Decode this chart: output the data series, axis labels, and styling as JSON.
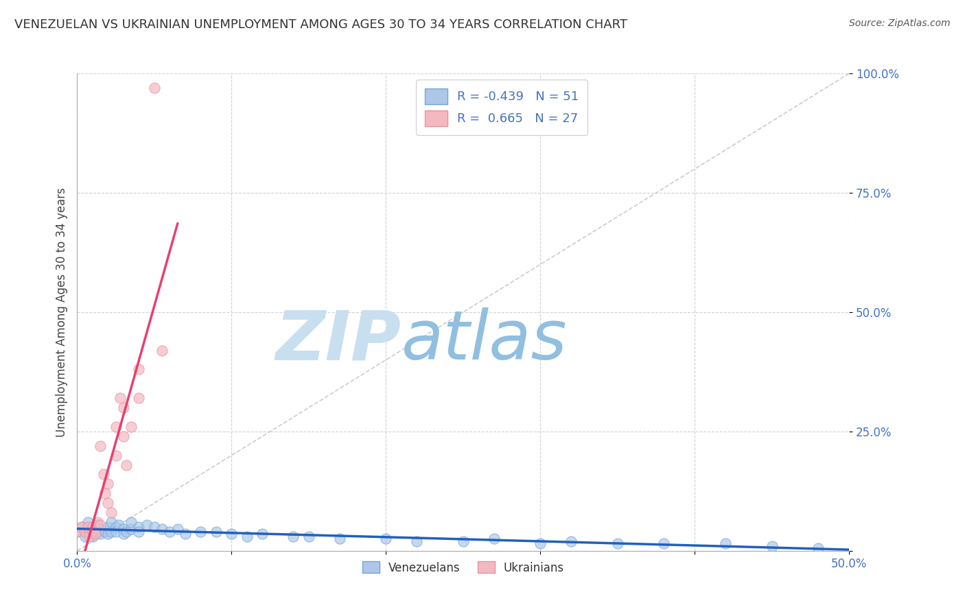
{
  "title": "VENEZUELAN VS UKRAINIAN UNEMPLOYMENT AMONG AGES 30 TO 34 YEARS CORRELATION CHART",
  "source": "Source: ZipAtlas.com",
  "ylabel": "Unemployment Among Ages 30 to 34 years",
  "xlim": [
    0.0,
    0.5
  ],
  "ylim": [
    0.0,
    1.0
  ],
  "xticks": [
    0.0,
    0.1,
    0.2,
    0.3,
    0.4,
    0.5
  ],
  "yticks": [
    0.0,
    0.25,
    0.5,
    0.75,
    1.0
  ],
  "xticklabels": [
    "0.0%",
    "",
    "",
    "",
    "",
    "50.0%"
  ],
  "yticklabels": [
    "",
    "25.0%",
    "50.0%",
    "75.0%",
    "100.0%"
  ],
  "blue_R": -0.439,
  "blue_N": 51,
  "pink_R": 0.665,
  "pink_N": 27,
  "blue_color": "#aec6e8",
  "pink_color": "#f4b8c1",
  "blue_edge": "#6fa8d4",
  "pink_edge": "#e890a0",
  "blue_line_color": "#2060c0",
  "pink_line_color": "#e84070",
  "blue_scatter": [
    [
      0.0,
      0.04
    ],
    [
      0.003,
      0.05
    ],
    [
      0.005,
      0.03
    ],
    [
      0.007,
      0.06
    ],
    [
      0.008,
      0.04
    ],
    [
      0.01,
      0.05
    ],
    [
      0.01,
      0.03
    ],
    [
      0.012,
      0.04
    ],
    [
      0.013,
      0.055
    ],
    [
      0.015,
      0.045
    ],
    [
      0.015,
      0.035
    ],
    [
      0.018,
      0.04
    ],
    [
      0.02,
      0.05
    ],
    [
      0.02,
      0.035
    ],
    [
      0.022,
      0.06
    ],
    [
      0.022,
      0.04
    ],
    [
      0.025,
      0.05
    ],
    [
      0.025,
      0.04
    ],
    [
      0.027,
      0.055
    ],
    [
      0.03,
      0.045
    ],
    [
      0.03,
      0.035
    ],
    [
      0.032,
      0.04
    ],
    [
      0.035,
      0.045
    ],
    [
      0.035,
      0.06
    ],
    [
      0.04,
      0.05
    ],
    [
      0.04,
      0.04
    ],
    [
      0.045,
      0.055
    ],
    [
      0.05,
      0.05
    ],
    [
      0.055,
      0.045
    ],
    [
      0.06,
      0.04
    ],
    [
      0.065,
      0.045
    ],
    [
      0.07,
      0.035
    ],
    [
      0.08,
      0.04
    ],
    [
      0.09,
      0.04
    ],
    [
      0.1,
      0.035
    ],
    [
      0.11,
      0.03
    ],
    [
      0.12,
      0.035
    ],
    [
      0.14,
      0.03
    ],
    [
      0.15,
      0.03
    ],
    [
      0.17,
      0.025
    ],
    [
      0.2,
      0.025
    ],
    [
      0.22,
      0.02
    ],
    [
      0.25,
      0.02
    ],
    [
      0.27,
      0.025
    ],
    [
      0.3,
      0.015
    ],
    [
      0.32,
      0.02
    ],
    [
      0.35,
      0.015
    ],
    [
      0.38,
      0.015
    ],
    [
      0.42,
      0.015
    ],
    [
      0.45,
      0.01
    ],
    [
      0.48,
      0.005
    ]
  ],
  "pink_scatter": [
    [
      0.0,
      0.04
    ],
    [
      0.003,
      0.05
    ],
    [
      0.005,
      0.04
    ],
    [
      0.007,
      0.05
    ],
    [
      0.008,
      0.03
    ],
    [
      0.01,
      0.05
    ],
    [
      0.01,
      0.04
    ],
    [
      0.012,
      0.035
    ],
    [
      0.013,
      0.06
    ],
    [
      0.015,
      0.055
    ],
    [
      0.015,
      0.22
    ],
    [
      0.017,
      0.16
    ],
    [
      0.018,
      0.12
    ],
    [
      0.02,
      0.14
    ],
    [
      0.02,
      0.1
    ],
    [
      0.022,
      0.08
    ],
    [
      0.025,
      0.26
    ],
    [
      0.025,
      0.2
    ],
    [
      0.028,
      0.32
    ],
    [
      0.03,
      0.3
    ],
    [
      0.03,
      0.24
    ],
    [
      0.032,
      0.18
    ],
    [
      0.035,
      0.26
    ],
    [
      0.04,
      0.38
    ],
    [
      0.04,
      0.32
    ],
    [
      0.05,
      0.97
    ],
    [
      0.055,
      0.42
    ]
  ],
  "watermark_zip": "ZIP",
  "watermark_atlas": "atlas",
  "watermark_color_zip": "#c8dff0",
  "watermark_color_atlas": "#90bfe0",
  "bg_color": "#ffffff",
  "grid_color": "#cccccc",
  "tick_color": "#4472c4",
  "title_color": "#333333",
  "legend_text_color": "#4472c4"
}
